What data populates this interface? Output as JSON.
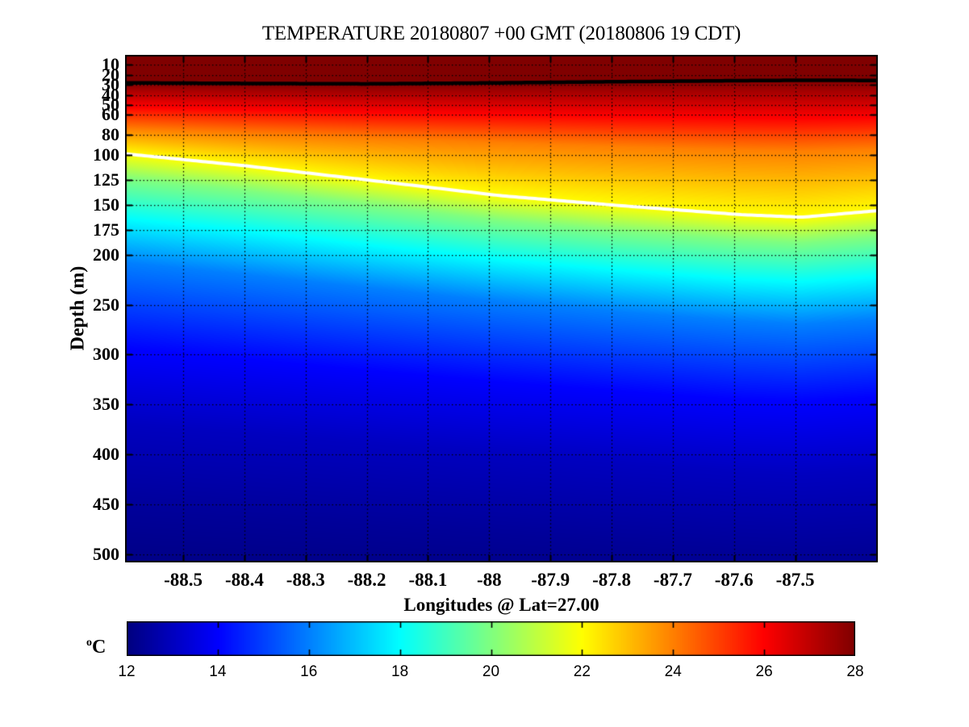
{
  "title": "TEMPERATURE 20180807 +00 GMT (20180806 19 CDT)",
  "axes": {
    "xlabel": "Longitudes @ Lat=27.00",
    "ylabel": "Depth (m)",
    "xlim": [
      -88.595,
      -87.365
    ],
    "ylim_depth_m": [
      0,
      508
    ],
    "x_ticks": [
      -88.5,
      -88.4,
      -88.3,
      -88.2,
      -88.1,
      -88,
      -87.9,
      -87.8,
      -87.7,
      -87.6,
      -87.5
    ],
    "x_tick_labels": [
      "-88.5",
      "-88.4",
      "-88.3",
      "-88.2",
      "-88.1",
      "-88",
      "-87.9",
      "-87.8",
      "-87.7",
      "-87.6",
      "-87.5"
    ],
    "y_ticks": [
      10,
      20,
      30,
      40,
      50,
      60,
      80,
      100,
      125,
      150,
      175,
      200,
      250,
      300,
      350,
      400,
      450,
      500
    ],
    "grid": "dotted-black"
  },
  "colorbar": {
    "unit_sup": "o",
    "unit_main": "C",
    "min": 12,
    "max": 28,
    "ticks": [
      12,
      14,
      16,
      18,
      20,
      22,
      24,
      26,
      28
    ],
    "tick_labels": [
      "12",
      "14",
      "16",
      "18",
      "20",
      "22",
      "24",
      "26",
      "28"
    ],
    "colormap": "jet"
  },
  "chart_data": {
    "type": "heatmap",
    "title": "TEMPERATURE 20180807 +00 GMT (20180806 19 CDT)",
    "xlabel": "Longitudes @ Lat=27.00",
    "ylabel": "Depth (m)",
    "value_unit": "degC",
    "colormap": "jet",
    "color_range": [
      12,
      28
    ],
    "x_range_longitude": [
      -88.595,
      -87.365
    ],
    "depth_range_m": [
      0,
      508
    ],
    "surface_temperature_c": 28.7,
    "deep_temperature_c": 12.05,
    "u_control": [
      0,
      0.16,
      0.32,
      0.5,
      0.66,
      0.82,
      0.9,
      1
    ],
    "isotherm_depths": [
      {
        "temp_c": 28.7,
        "depths_m": [
          0,
          0,
          0,
          0,
          0,
          0,
          0,
          0
        ]
      },
      {
        "temp_c": 28.0,
        "depths_m": [
          28,
          28.6,
          29,
          28,
          26.8,
          25.8,
          25.4,
          25.6
        ]
      },
      {
        "temp_c": 26.0,
        "depths_m": [
          52,
          55,
          57.5,
          59.5,
          61.5,
          63,
          63.5,
          62.5
        ]
      },
      {
        "temp_c": 24.0,
        "depths_m": [
          74,
          79,
          83.5,
          88,
          92,
          95.5,
          96.5,
          94.5
        ]
      },
      {
        "temp_c": 22.0,
        "depths_m": [
          99,
          111,
          125,
          141,
          151,
          160,
          162.5,
          156
        ]
      },
      {
        "temp_c": 20.0,
        "depths_m": [
          124,
          136,
          150,
          166,
          176.5,
          185.5,
          188,
          182.5
        ]
      },
      {
        "temp_c": 18.0,
        "depths_m": [
          164,
          176,
          190,
          205,
          215.5,
          224.5,
          227,
          222
        ]
      },
      {
        "temp_c": 16.0,
        "depths_m": [
          208,
          220,
          233,
          247,
          257.5,
          266.5,
          269.5,
          265
        ]
      },
      {
        "temp_c": 14.0,
        "depths_m": [
          295,
          305,
          316,
          328,
          337,
          345.5,
          347.5,
          343
        ]
      },
      {
        "temp_c": 13.0,
        "depths_m": [
          370,
          379,
          389,
          400,
          409,
          418,
          420.5,
          416
        ]
      },
      {
        "temp_c": 12.4,
        "depths_m": [
          455,
          462,
          470,
          479,
          487,
          494.5,
          497,
          493
        ]
      },
      {
        "temp_c": 12.1,
        "depths_m": [
          510,
          516,
          522,
          529,
          535,
          541,
          543,
          539
        ]
      }
    ],
    "contours": [
      {
        "temp_c": 28.0,
        "color": "#000000",
        "line_width": 4.5,
        "name": "black-isotherm-28C"
      },
      {
        "temp_c": 22.0,
        "color": "#ffffff",
        "line_width": 4.0,
        "name": "white-isotherm-22C"
      }
    ]
  }
}
